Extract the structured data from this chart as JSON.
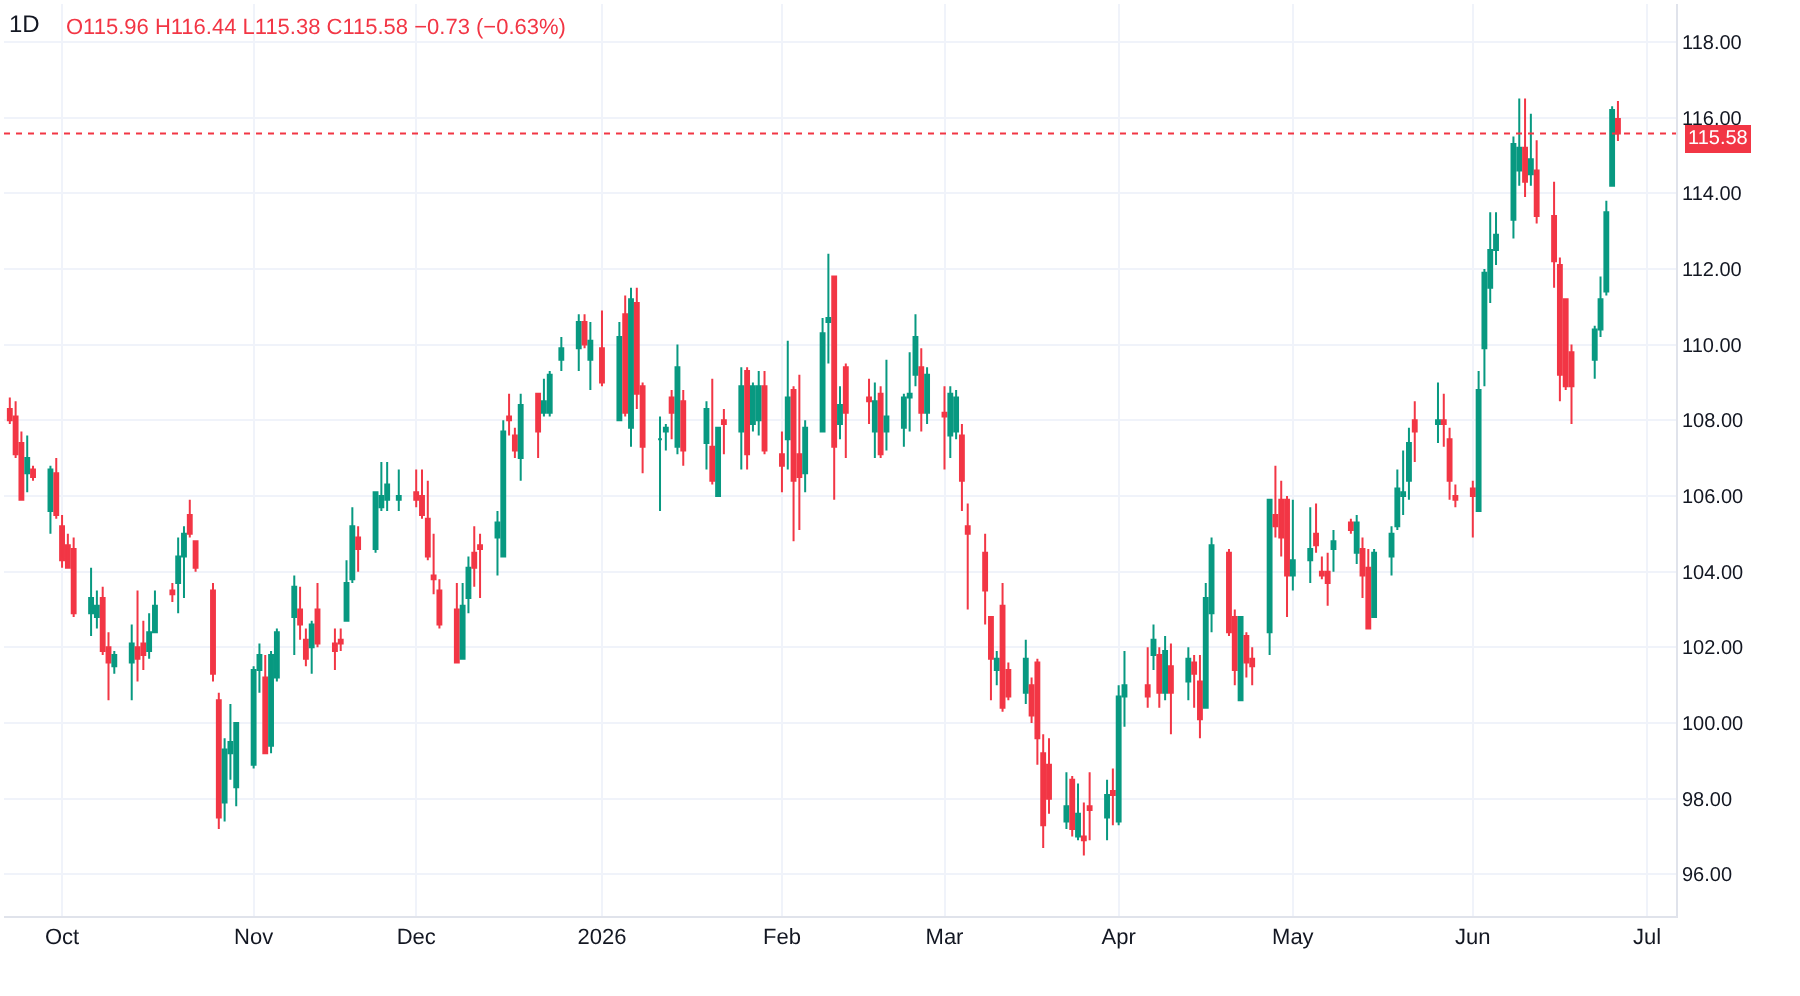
{
  "chart_data": {
    "type": "candlestick",
    "title": "1D",
    "subtitle": "O115.96 H116.44 L115.38 C115.58 −0.73 (−0.63%)",
    "x": [
      "2025-09-22",
      "2025-09-23",
      "2025-09-24",
      "2025-09-25",
      "2025-09-26",
      "2025-09-29",
      "2025-09-30",
      "2025-10-01",
      "2025-10-02",
      "2025-10-03",
      "2025-10-06",
      "2025-10-07",
      "2025-10-08",
      "2025-10-09",
      "2025-10-10",
      "2025-10-13",
      "2025-10-14",
      "2025-10-15",
      "2025-10-16",
      "2025-10-17",
      "2025-10-20",
      "2025-10-21",
      "2025-10-22",
      "2025-10-23",
      "2025-10-24",
      "2025-10-27",
      "2025-10-28",
      "2025-10-29",
      "2025-10-30",
      "2025-10-31",
      "2025-11-03",
      "2025-11-04",
      "2025-11-05",
      "2025-11-06",
      "2025-11-07",
      "2025-11-10",
      "2025-11-11",
      "2025-11-12",
      "2025-11-13",
      "2025-11-14",
      "2025-11-17",
      "2025-11-18",
      "2025-11-19",
      "2025-11-20",
      "2025-11-21",
      "2025-11-24",
      "2025-11-25",
      "2025-11-26",
      "2025-11-28",
      "2025-12-01",
      "2025-12-02",
      "2025-12-03",
      "2025-12-04",
      "2025-12-05",
      "2025-12-08",
      "2025-12-09",
      "2025-12-10",
      "2025-12-11",
      "2025-12-12",
      "2025-12-15",
      "2025-12-16",
      "2025-12-17",
      "2025-12-18",
      "2025-12-19",
      "2025-12-22",
      "2025-12-23",
      "2025-12-24",
      "2025-12-26",
      "2025-12-29",
      "2025-12-30",
      "2025-12-31",
      "2026-01-02",
      "2026-01-05",
      "2026-01-06",
      "2026-01-07",
      "2026-01-08",
      "2026-01-09",
      "2026-01-12",
      "2026-01-13",
      "2026-01-14",
      "2026-01-15",
      "2026-01-16",
      "2026-01-20",
      "2026-01-21",
      "2026-01-22",
      "2026-01-23",
      "2026-01-26",
      "2026-01-27",
      "2026-01-28",
      "2026-01-29",
      "2026-01-30",
      "2026-02-02",
      "2026-02-03",
      "2026-02-04",
      "2026-02-05",
      "2026-02-06",
      "2026-02-09",
      "2026-02-10",
      "2026-02-11",
      "2026-02-12",
      "2026-02-13",
      "2026-02-17",
      "2026-02-18",
      "2026-02-19",
      "2026-02-20",
      "2026-02-23",
      "2026-02-24",
      "2026-02-25",
      "2026-02-26",
      "2026-02-27",
      "2026-03-02",
      "2026-03-03",
      "2026-03-04",
      "2026-03-05",
      "2026-03-06",
      "2026-03-09",
      "2026-03-10",
      "2026-03-11",
      "2026-03-12",
      "2026-03-13",
      "2026-03-16",
      "2026-03-17",
      "2026-03-18",
      "2026-03-19",
      "2026-03-20",
      "2026-03-23",
      "2026-03-24",
      "2026-03-25",
      "2026-03-26",
      "2026-03-27",
      "2026-03-30",
      "2026-03-31",
      "2026-04-01",
      "2026-04-02",
      "2026-04-06",
      "2026-04-07",
      "2026-04-08",
      "2026-04-09",
      "2026-04-10",
      "2026-04-13",
      "2026-04-14",
      "2026-04-15",
      "2026-04-16",
      "2026-04-17",
      "2026-04-20",
      "2026-04-21",
      "2026-04-22",
      "2026-04-23",
      "2026-04-24",
      "2026-04-27",
      "2026-04-28",
      "2026-04-29",
      "2026-04-30",
      "2026-05-01",
      "2026-05-04",
      "2026-05-05",
      "2026-05-06",
      "2026-05-07",
      "2026-05-08",
      "2026-05-11",
      "2026-05-12",
      "2026-05-13",
      "2026-05-14",
      "2026-05-15",
      "2026-05-18",
      "2026-05-19",
      "2026-05-20",
      "2026-05-21",
      "2026-05-22",
      "2026-05-26",
      "2026-05-27",
      "2026-05-28",
      "2026-05-29",
      "2026-06-01",
      "2026-06-02",
      "2026-06-03",
      "2026-06-04",
      "2026-06-05",
      "2026-06-08",
      "2026-06-09",
      "2026-06-10",
      "2026-06-11",
      "2026-06-12",
      "2026-06-15",
      "2026-06-16",
      "2026-06-17",
      "2026-06-18",
      "2026-06-22",
      "2026-06-23",
      "2026-06-24",
      "2026-06-25",
      "2026-06-26"
    ],
    "ohlc": [
      [
        108.3,
        108.6,
        107.9,
        108.0
      ],
      [
        108.1,
        108.5,
        107.0,
        107.1
      ],
      [
        107.4,
        107.7,
        105.9,
        105.9
      ],
      [
        106.6,
        107.6,
        106.1,
        107.0
      ],
      [
        106.7,
        106.8,
        106.4,
        106.5
      ],
      [
        105.6,
        106.8,
        105.0,
        106.7
      ],
      [
        106.6,
        107.0,
        105.4,
        105.5
      ],
      [
        105.2,
        105.5,
        104.1,
        104.3
      ],
      [
        104.7,
        105.0,
        104.1,
        104.1
      ],
      [
        104.6,
        104.9,
        102.8,
        102.9
      ],
      [
        102.9,
        104.1,
        102.3,
        103.3
      ],
      [
        102.8,
        103.5,
        102.5,
        103.1
      ],
      [
        103.3,
        103.6,
        101.8,
        101.9
      ],
      [
        102.0,
        102.4,
        100.6,
        101.6
      ],
      [
        101.5,
        101.9,
        101.3,
        101.8
      ],
      [
        101.6,
        102.6,
        100.6,
        102.1
      ],
      [
        102.0,
        103.5,
        101.1,
        101.7
      ],
      [
        102.1,
        102.7,
        101.4,
        101.8
      ],
      [
        101.9,
        102.9,
        101.7,
        102.4
      ],
      [
        102.4,
        103.5,
        102.4,
        103.1
      ],
      [
        103.5,
        103.7,
        103.2,
        103.4
      ],
      [
        103.7,
        104.9,
        102.9,
        104.4
      ],
      [
        104.4,
        105.2,
        103.3,
        105.0
      ],
      [
        105.5,
        105.9,
        104.9,
        105.0
      ],
      [
        104.8,
        104.8,
        104.0,
        104.1
      ],
      [
        103.5,
        103.7,
        101.1,
        101.3
      ],
      [
        100.6,
        100.8,
        97.2,
        97.5
      ],
      [
        97.9,
        99.6,
        97.4,
        99.3
      ],
      [
        99.2,
        100.5,
        98.5,
        99.5
      ],
      [
        98.3,
        100.0,
        97.8,
        100.0
      ],
      [
        98.9,
        101.5,
        98.8,
        101.4
      ],
      [
        101.4,
        102.1,
        100.8,
        101.8
      ],
      [
        101.2,
        101.8,
        99.2,
        99.2
      ],
      [
        99.4,
        101.9,
        99.2,
        101.8
      ],
      [
        101.2,
        102.5,
        101.1,
        102.4
      ],
      [
        102.8,
        103.9,
        101.8,
        103.6
      ],
      [
        103.0,
        103.6,
        102.2,
        102.6
      ],
      [
        102.2,
        102.5,
        101.5,
        101.7
      ],
      [
        102.0,
        102.7,
        101.3,
        102.6
      ],
      [
        103.0,
        103.7,
        102.0,
        102.1
      ],
      [
        102.1,
        102.5,
        101.4,
        101.9
      ],
      [
        102.2,
        102.5,
        101.9,
        102.1
      ],
      [
        102.7,
        104.3,
        102.7,
        103.7
      ],
      [
        103.8,
        105.7,
        103.7,
        105.2
      ],
      [
        104.9,
        105.2,
        104.0,
        104.6
      ],
      [
        104.6,
        106.1,
        104.5,
        106.1
      ],
      [
        105.7,
        106.9,
        105.6,
        106.0
      ],
      [
        105.9,
        106.9,
        105.6,
        106.3
      ],
      [
        105.9,
        106.7,
        105.6,
        106.0
      ],
      [
        106.1,
        106.7,
        105.7,
        105.9
      ],
      [
        106.0,
        106.7,
        105.4,
        105.5
      ],
      [
        105.4,
        106.4,
        104.3,
        104.4
      ],
      [
        103.9,
        105.0,
        103.4,
        103.8
      ],
      [
        103.5,
        103.8,
        102.5,
        102.6
      ],
      [
        103.0,
        103.7,
        101.6,
        101.6
      ],
      [
        101.7,
        103.7,
        101.7,
        103.1
      ],
      [
        103.3,
        104.4,
        102.9,
        104.1
      ],
      [
        104.5,
        105.2,
        103.6,
        104.1
      ],
      [
        104.7,
        105.0,
        103.3,
        104.6
      ],
      [
        104.9,
        105.6,
        103.9,
        105.3
      ],
      [
        104.4,
        108.0,
        104.4,
        107.7
      ],
      [
        108.1,
        108.7,
        107.6,
        108.0
      ],
      [
        107.6,
        107.8,
        107.0,
        107.2
      ],
      [
        107.0,
        108.7,
        106.4,
        108.4
      ],
      [
        108.7,
        108.7,
        107.0,
        107.7
      ],
      [
        108.2,
        109.1,
        108.1,
        108.5
      ],
      [
        108.2,
        109.3,
        108.1,
        109.2
      ],
      [
        109.6,
        110.2,
        109.3,
        109.9
      ],
      [
        109.9,
        110.8,
        109.3,
        110.6
      ],
      [
        110.6,
        110.8,
        109.9,
        110.0
      ],
      [
        109.6,
        110.6,
        108.8,
        110.1
      ],
      [
        109.9,
        110.9,
        108.9,
        109.0
      ],
      [
        108.0,
        110.6,
        108.0,
        110.2
      ],
      [
        110.8,
        111.3,
        108.1,
        108.2
      ],
      [
        107.8,
        111.5,
        107.3,
        111.2
      ],
      [
        111.1,
        111.5,
        108.3,
        108.7
      ],
      [
        108.9,
        109.0,
        106.6,
        107.3
      ],
      [
        107.5,
        108.1,
        105.6,
        107.5
      ],
      [
        107.7,
        107.9,
        107.2,
        107.8
      ],
      [
        108.6,
        108.8,
        107.5,
        108.2
      ],
      [
        107.3,
        110.0,
        107.1,
        109.4
      ],
      [
        108.5,
        108.8,
        106.8,
        107.2
      ],
      [
        107.4,
        108.5,
        106.7,
        108.3
      ],
      [
        107.3,
        109.1,
        106.3,
        106.4
      ],
      [
        106.0,
        107.8,
        106.0,
        107.8
      ],
      [
        108.0,
        108.3,
        107.1,
        107.9
      ],
      [
        107.7,
        109.4,
        106.7,
        108.9
      ],
      [
        109.3,
        109.4,
        106.7,
        107.1
      ],
      [
        107.9,
        109.0,
        107.7,
        108.9
      ],
      [
        108.0,
        109.3,
        107.6,
        108.9
      ],
      [
        108.9,
        109.3,
        107.1,
        107.2
      ],
      [
        107.1,
        107.7,
        106.1,
        106.8
      ],
      [
        107.5,
        110.1,
        106.7,
        108.6
      ],
      [
        108.8,
        108.9,
        104.8,
        106.4
      ],
      [
        107.1,
        109.2,
        105.1,
        106.5
      ],
      [
        106.6,
        108.0,
        106.1,
        107.8
      ],
      [
        107.7,
        110.7,
        107.7,
        110.3
      ],
      [
        110.6,
        112.4,
        109.5,
        110.7
      ],
      [
        111.8,
        111.8,
        105.9,
        107.3
      ],
      [
        107.9,
        108.9,
        107.5,
        108.4
      ],
      [
        109.4,
        109.5,
        107.0,
        108.2
      ],
      [
        108.6,
        109.1,
        107.9,
        108.5
      ],
      [
        107.7,
        109.0,
        107.0,
        108.5
      ],
      [
        108.7,
        108.9,
        107.0,
        107.1
      ],
      [
        107.7,
        109.6,
        107.2,
        108.1
      ],
      [
        107.8,
        108.7,
        107.3,
        108.6
      ],
      [
        108.6,
        109.8,
        107.7,
        108.7
      ],
      [
        109.2,
        110.8,
        108.9,
        110.2
      ],
      [
        109.4,
        109.9,
        107.7,
        108.2
      ],
      [
        108.2,
        109.4,
        107.9,
        109.2
      ],
      [
        108.2,
        108.9,
        106.7,
        108.1
      ],
      [
        107.6,
        108.9,
        107.0,
        108.7
      ],
      [
        107.7,
        108.8,
        107.5,
        108.6
      ],
      [
        107.6,
        107.9,
        105.6,
        106.4
      ],
      [
        105.2,
        105.8,
        103.0,
        105.0
      ],
      [
        104.5,
        105.0,
        102.6,
        103.5
      ],
      [
        102.8,
        102.8,
        100.6,
        101.7
      ],
      [
        101.4,
        101.9,
        101.0,
        101.7
      ],
      [
        103.1,
        103.7,
        100.3,
        100.4
      ],
      [
        101.4,
        101.6,
        100.6,
        100.7
      ],
      [
        100.8,
        102.2,
        100.5,
        101.7
      ],
      [
        101.0,
        101.2,
        100.0,
        100.2
      ],
      [
        101.6,
        101.7,
        98.9,
        99.6
      ],
      [
        99.2,
        99.7,
        96.7,
        97.3
      ],
      [
        98.9,
        99.6,
        97.6,
        98.0
      ],
      [
        97.4,
        98.7,
        97.2,
        97.8
      ],
      [
        98.5,
        98.6,
        97.0,
        97.2
      ],
      [
        97.0,
        98.4,
        96.9,
        97.6
      ],
      [
        97.0,
        97.9,
        96.5,
        96.9
      ],
      [
        97.8,
        98.7,
        96.9,
        97.7
      ],
      [
        97.5,
        98.5,
        96.9,
        98.1
      ],
      [
        98.2,
        98.8,
        97.3,
        98.1
      ],
      [
        97.4,
        101.0,
        97.3,
        100.7
      ],
      [
        100.7,
        101.9,
        99.9,
        101.0
      ],
      [
        101.0,
        102.0,
        100.4,
        100.7
      ],
      [
        101.8,
        102.6,
        101.4,
        102.2
      ],
      [
        101.8,
        102.0,
        100.4,
        100.8
      ],
      [
        100.8,
        102.3,
        100.6,
        101.9
      ],
      [
        101.5,
        102.1,
        99.7,
        100.8
      ],
      [
        101.1,
        102.0,
        100.6,
        101.7
      ],
      [
        101.6,
        101.8,
        100.4,
        101.3
      ],
      [
        101.1,
        101.8,
        99.6,
        100.1
      ],
      [
        100.4,
        103.7,
        100.4,
        103.3
      ],
      [
        102.9,
        104.9,
        102.4,
        104.7
      ],
      [
        104.5,
        104.6,
        102.3,
        102.4
      ],
      [
        102.8,
        103.0,
        101.0,
        101.4
      ],
      [
        100.6,
        102.8,
        100.6,
        102.8
      ],
      [
        102.3,
        102.4,
        101.2,
        101.6
      ],
      [
        101.7,
        102.0,
        101.0,
        101.5
      ],
      [
        102.4,
        105.9,
        101.8,
        105.9
      ],
      [
        105.5,
        106.8,
        104.9,
        105.2
      ],
      [
        105.9,
        106.4,
        104.4,
        104.9
      ],
      [
        105.9,
        106.0,
        102.8,
        103.9
      ],
      [
        103.9,
        105.9,
        103.5,
        104.3
      ],
      [
        104.3,
        105.7,
        103.7,
        104.6
      ],
      [
        105.0,
        105.8,
        104.5,
        104.7
      ],
      [
        104.0,
        104.4,
        103.8,
        103.9
      ],
      [
        104.0,
        104.5,
        103.1,
        103.7
      ],
      [
        104.6,
        105.1,
        104.0,
        104.8
      ],
      [
        105.3,
        105.4,
        105.0,
        105.1
      ],
      [
        104.5,
        105.5,
        104.2,
        105.3
      ],
      [
        104.6,
        104.9,
        103.3,
        103.9
      ],
      [
        104.1,
        104.6,
        102.5,
        102.5
      ],
      [
        102.8,
        104.6,
        102.8,
        104.5
      ],
      [
        104.4,
        105.2,
        103.9,
        105.0
      ],
      [
        105.2,
        106.7,
        105.1,
        106.2
      ],
      [
        106.0,
        107.2,
        105.5,
        106.1
      ],
      [
        106.4,
        107.8,
        105.9,
        107.4
      ],
      [
        108.0,
        108.5,
        106.9,
        107.7
      ],
      [
        107.9,
        109.0,
        107.4,
        108.0
      ],
      [
        108.0,
        108.7,
        107.3,
        107.9
      ],
      [
        107.5,
        107.8,
        105.9,
        106.4
      ],
      [
        106.0,
        106.3,
        105.7,
        105.9
      ],
      [
        106.2,
        106.4,
        104.9,
        106.0
      ],
      [
        105.6,
        109.3,
        105.6,
        108.8
      ],
      [
        109.9,
        112.0,
        108.9,
        111.9
      ],
      [
        111.5,
        113.5,
        111.1,
        112.5
      ],
      [
        112.5,
        113.5,
        112.1,
        112.9
      ],
      [
        113.3,
        115.5,
        112.8,
        115.3
      ],
      [
        114.6,
        116.5,
        114.2,
        115.2
      ],
      [
        115.2,
        116.5,
        113.9,
        114.3
      ],
      [
        114.5,
        116.1,
        114.2,
        114.9
      ],
      [
        114.6,
        115.4,
        113.2,
        113.4
      ],
      [
        113.4,
        114.3,
        111.5,
        112.2
      ],
      [
        112.1,
        112.3,
        108.5,
        109.2
      ],
      [
        111.2,
        111.2,
        108.8,
        108.9
      ],
      [
        109.8,
        110.0,
        107.9,
        108.9
      ],
      [
        109.6,
        110.5,
        109.1,
        110.4
      ],
      [
        110.4,
        111.8,
        110.2,
        111.2
      ],
      [
        111.4,
        113.8,
        111.3,
        113.5
      ],
      [
        114.2,
        116.3,
        114.2,
        116.2
      ],
      [
        115.96,
        116.44,
        115.38,
        115.58
      ]
    ],
    "xlim": [
      "2025-09-21",
      "2026-07-06"
    ],
    "xticks": [
      {
        "value": "2025-10-01",
        "label": "Oct"
      },
      {
        "value": "2025-11-03",
        "label": "Nov"
      },
      {
        "value": "2025-12-01",
        "label": "Dec"
      },
      {
        "value": "2026-01-02",
        "label": "2026"
      },
      {
        "value": "2026-02-02",
        "label": "Feb"
      },
      {
        "value": "2026-03-02",
        "label": "Mar"
      },
      {
        "value": "2026-04-01",
        "label": "Apr"
      },
      {
        "value": "2026-05-01",
        "label": "May"
      },
      {
        "value": "2026-06-01",
        "label": "Jun"
      },
      {
        "value": "2026-07-01",
        "label": "Jul"
      }
    ],
    "ylim": [
      94.9,
      119.0
    ],
    "yticks": [
      {
        "value": 96,
        "label": "96.00"
      },
      {
        "value": 98,
        "label": "98.00"
      },
      {
        "value": 100,
        "label": "100.00"
      },
      {
        "value": 102,
        "label": "102.00"
      },
      {
        "value": 104,
        "label": "104.00"
      },
      {
        "value": 106,
        "label": "106.00"
      },
      {
        "value": 108,
        "label": "108.00"
      },
      {
        "value": 110,
        "label": "110.00"
      },
      {
        "value": 112,
        "label": "112.00"
      },
      {
        "value": 114,
        "label": "114.00"
      },
      {
        "value": 116,
        "label": "116.00"
      },
      {
        "value": 118,
        "label": "118.00"
      }
    ],
    "grid": true,
    "ref_lines": [
      {
        "axis": "y",
        "value": 115.58,
        "label": "115.58",
        "color": "#f23645",
        "line_style": "dotted"
      }
    ]
  }
}
